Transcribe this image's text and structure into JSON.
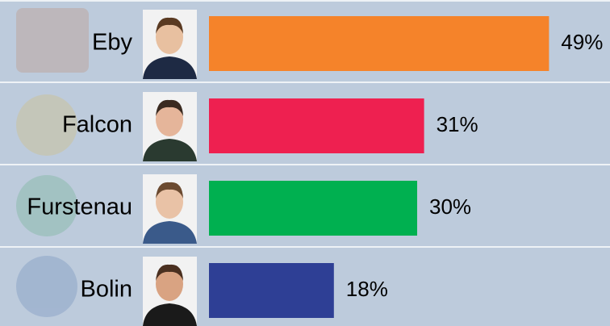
{
  "chart_data": {
    "type": "bar",
    "orientation": "horizontal",
    "categories": [
      "Eby",
      "Falcon",
      "Furstenau",
      "Bolin"
    ],
    "values": [
      49,
      31,
      30,
      18
    ],
    "value_labels": [
      "49%",
      "31%",
      "30%",
      "18%"
    ],
    "colors": [
      "#f5832a",
      "#ee2050",
      "#00b050",
      "#2e3f95"
    ]
  }
}
